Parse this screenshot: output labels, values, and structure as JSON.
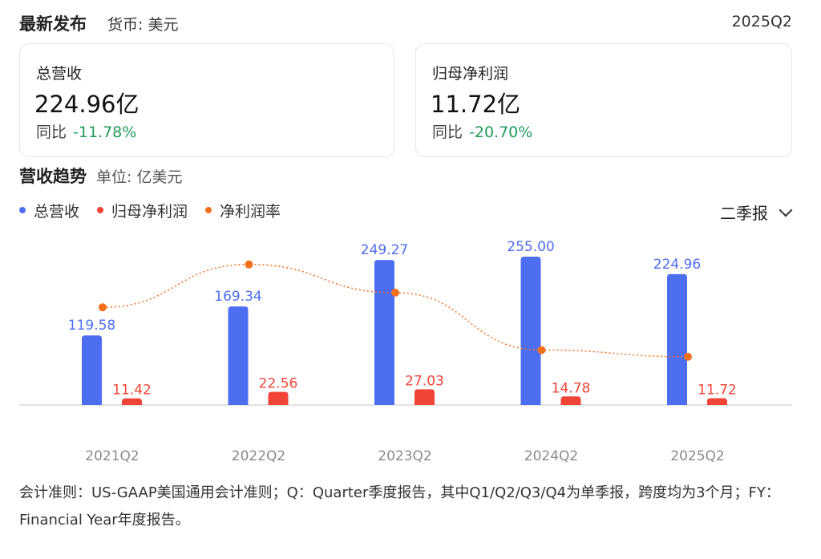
{
  "header": {
    "title": "最新发布",
    "currency": "货币: 美元",
    "period": "2025Q2"
  },
  "cards": [
    {
      "label": "总营收",
      "value": "224.96亿",
      "yoy_label": "同比",
      "yoy_value": "-11.78%"
    },
    {
      "label": "归母净利润",
      "value": "11.72亿",
      "yoy_label": "同比",
      "yoy_value": "-20.70%"
    }
  ],
  "section": {
    "title": "营收趋势",
    "unit": "单位: 亿美元"
  },
  "legend": [
    {
      "label": "总营收",
      "color": "#4e6ef2"
    },
    {
      "label": "归母净利润",
      "color": "#f04437"
    },
    {
      "label": "净利润率",
      "color": "#f2701c"
    }
  ],
  "period_select": {
    "label": "二季报",
    "icon": "chevron-down-icon"
  },
  "chart_data": {
    "type": "bar",
    "categories": [
      "2021Q2",
      "2022Q2",
      "2023Q2",
      "2024Q2",
      "2025Q2"
    ],
    "series": [
      {
        "name": "总营收",
        "kind": "bar",
        "color": "#4e6ef2",
        "values": [
          119.58,
          169.34,
          249.27,
          255.0,
          224.96
        ],
        "labels": [
          "119.58",
          "169.34",
          "249.27",
          "255.00",
          "224.96"
        ]
      },
      {
        "name": "归母净利润",
        "kind": "bar",
        "color": "#f04437",
        "values": [
          11.42,
          22.56,
          27.03,
          14.78,
          11.72
        ],
        "labels": [
          "11.42",
          "22.56",
          "27.03",
          "14.78",
          "11.72"
        ]
      },
      {
        "name": "净利润率",
        "kind": "line",
        "color": "#f2701c",
        "values": [
          9.55,
          13.32,
          10.84,
          5.8,
          5.21
        ]
      }
    ],
    "ylim": [
      0,
      255
    ]
  },
  "footnote": "会计准则：US-GAAP美国通用会计准则；Q：Quarter季度报告，其中Q1/Q2/Q3/Q4为单季报，跨度均为3个月；FY：Financial Year年度报告。"
}
